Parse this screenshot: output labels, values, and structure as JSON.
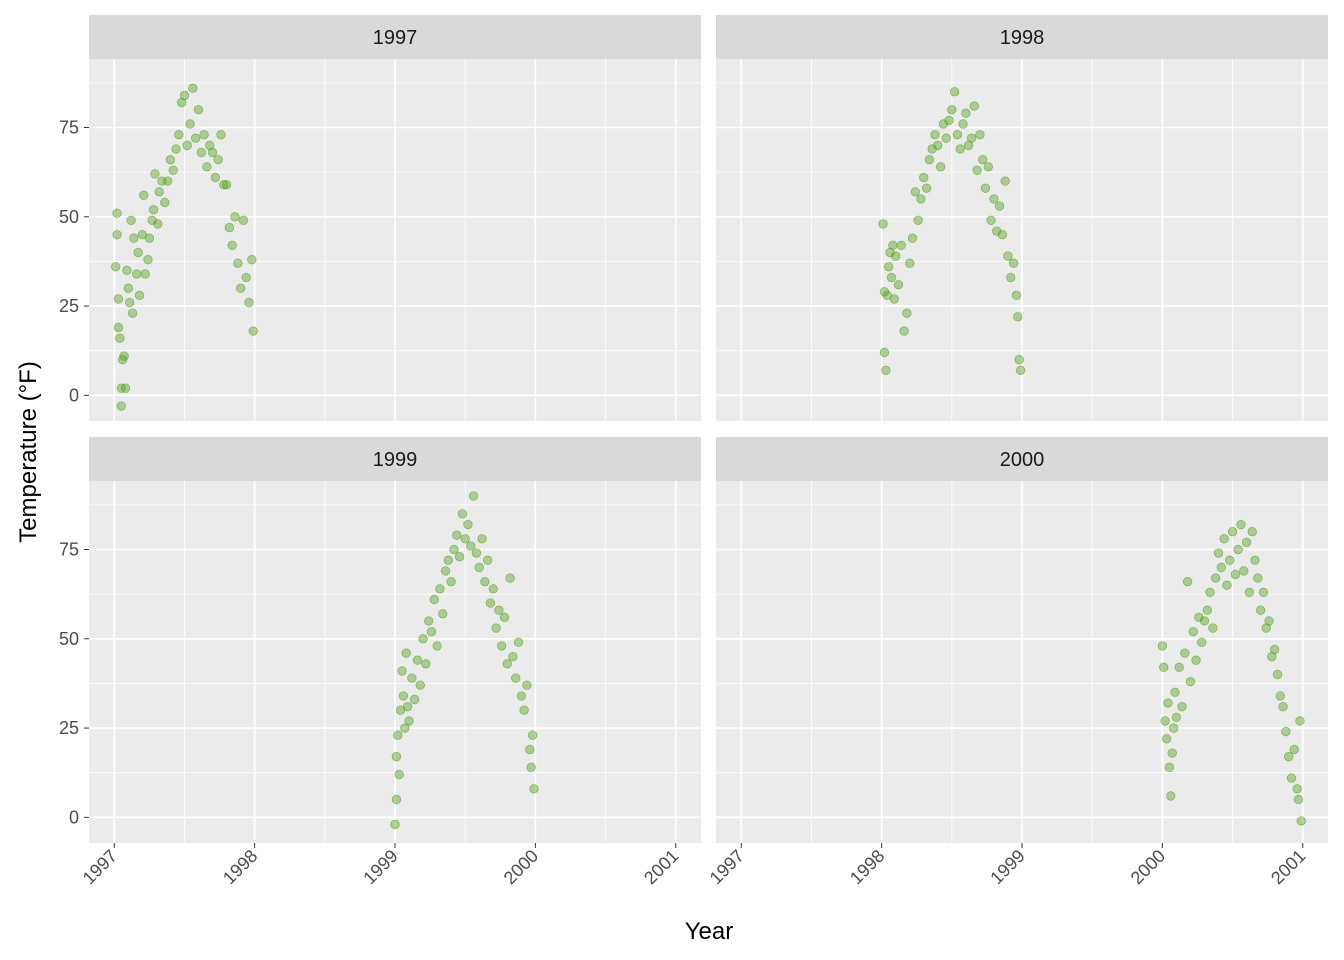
{
  "chart_data": {
    "type": "scatter",
    "xlabel": "Year",
    "ylabel": "Temperature (°F)",
    "xlim": [
      1997,
      2001
    ],
    "ylim": [
      -3,
      90
    ],
    "x_ticks": [
      "1997",
      "1998",
      "1999",
      "2000",
      "2001"
    ],
    "y_ticks": [
      "0",
      "25",
      "50",
      "75"
    ],
    "point_color": "#4a9a14",
    "background": "#ebebeb",
    "strip_background": "#d9d9d9",
    "grid": true,
    "facets": [
      {
        "label": "1997",
        "points": [
          [
            1997.01,
            36
          ],
          [
            1997.02,
            51
          ],
          [
            1997.02,
            45
          ],
          [
            1997.03,
            27
          ],
          [
            1997.03,
            19
          ],
          [
            1997.04,
            16
          ],
          [
            1997.05,
            2
          ],
          [
            1997.05,
            -3
          ],
          [
            1997.06,
            10
          ],
          [
            1997.07,
            11
          ],
          [
            1997.08,
            2
          ],
          [
            1997.09,
            35
          ],
          [
            1997.1,
            30
          ],
          [
            1997.11,
            26
          ],
          [
            1997.12,
            49
          ],
          [
            1997.13,
            23
          ],
          [
            1997.14,
            44
          ],
          [
            1997.16,
            34
          ],
          [
            1997.17,
            40
          ],
          [
            1997.18,
            28
          ],
          [
            1997.2,
            45
          ],
          [
            1997.21,
            56
          ],
          [
            1997.22,
            34
          ],
          [
            1997.24,
            38
          ],
          [
            1997.25,
            44
          ],
          [
            1997.27,
            49
          ],
          [
            1997.28,
            52
          ],
          [
            1997.29,
            62
          ],
          [
            1997.31,
            48
          ],
          [
            1997.32,
            57
          ],
          [
            1997.34,
            60
          ],
          [
            1997.36,
            54
          ],
          [
            1997.38,
            60
          ],
          [
            1997.4,
            66
          ],
          [
            1997.42,
            63
          ],
          [
            1997.44,
            69
          ],
          [
            1997.46,
            73
          ],
          [
            1997.48,
            82
          ],
          [
            1997.5,
            84
          ],
          [
            1997.52,
            70
          ],
          [
            1997.54,
            76
          ],
          [
            1997.56,
            86
          ],
          [
            1997.58,
            72
          ],
          [
            1997.6,
            80
          ],
          [
            1997.62,
            68
          ],
          [
            1997.64,
            73
          ],
          [
            1997.66,
            64
          ],
          [
            1997.68,
            70
          ],
          [
            1997.7,
            68
          ],
          [
            1997.72,
            61
          ],
          [
            1997.74,
            66
          ],
          [
            1997.76,
            73
          ],
          [
            1997.78,
            59
          ],
          [
            1997.8,
            59
          ],
          [
            1997.82,
            47
          ],
          [
            1997.84,
            42
          ],
          [
            1997.86,
            50
          ],
          [
            1997.88,
            37
          ],
          [
            1997.9,
            30
          ],
          [
            1997.92,
            49
          ],
          [
            1997.94,
            33
          ],
          [
            1997.96,
            26
          ],
          [
            1997.98,
            38
          ],
          [
            1997.99,
            18
          ]
        ]
      },
      {
        "label": "1998",
        "points": [
          [
            1998.01,
            48
          ],
          [
            1998.02,
            29
          ],
          [
            1998.02,
            12
          ],
          [
            1998.03,
            7
          ],
          [
            1998.04,
            28
          ],
          [
            1998.05,
            36
          ],
          [
            1998.06,
            40
          ],
          [
            1998.07,
            33
          ],
          [
            1998.08,
            42
          ],
          [
            1998.09,
            27
          ],
          [
            1998.1,
            39
          ],
          [
            1998.12,
            31
          ],
          [
            1998.14,
            42
          ],
          [
            1998.16,
            18
          ],
          [
            1998.18,
            23
          ],
          [
            1998.2,
            37
          ],
          [
            1998.22,
            44
          ],
          [
            1998.24,
            57
          ],
          [
            1998.26,
            49
          ],
          [
            1998.28,
            55
          ],
          [
            1998.3,
            61
          ],
          [
            1998.32,
            58
          ],
          [
            1998.34,
            66
          ],
          [
            1998.36,
            69
          ],
          [
            1998.38,
            73
          ],
          [
            1998.4,
            70
          ],
          [
            1998.42,
            64
          ],
          [
            1998.44,
            76
          ],
          [
            1998.46,
            72
          ],
          [
            1998.48,
            77
          ],
          [
            1998.5,
            80
          ],
          [
            1998.52,
            85
          ],
          [
            1998.54,
            73
          ],
          [
            1998.56,
            69
          ],
          [
            1998.58,
            76
          ],
          [
            1998.6,
            79
          ],
          [
            1998.62,
            70
          ],
          [
            1998.64,
            72
          ],
          [
            1998.66,
            81
          ],
          [
            1998.68,
            63
          ],
          [
            1998.7,
            73
          ],
          [
            1998.72,
            66
          ],
          [
            1998.74,
            58
          ],
          [
            1998.76,
            64
          ],
          [
            1998.78,
            49
          ],
          [
            1998.8,
            55
          ],
          [
            1998.82,
            46
          ],
          [
            1998.84,
            53
          ],
          [
            1998.86,
            45
          ],
          [
            1998.88,
            60
          ],
          [
            1998.9,
            39
          ],
          [
            1998.92,
            33
          ],
          [
            1998.94,
            37
          ],
          [
            1998.96,
            28
          ],
          [
            1998.97,
            22
          ],
          [
            1998.98,
            10
          ],
          [
            1998.99,
            7
          ]
        ]
      },
      {
        "label": "1999",
        "points": [
          [
            1999.0,
            -2
          ],
          [
            1999.01,
            5
          ],
          [
            1999.01,
            17
          ],
          [
            1999.02,
            23
          ],
          [
            1999.03,
            12
          ],
          [
            1999.04,
            30
          ],
          [
            1999.05,
            41
          ],
          [
            1999.06,
            34
          ],
          [
            1999.07,
            25
          ],
          [
            1999.08,
            46
          ],
          [
            1999.09,
            31
          ],
          [
            1999.1,
            27
          ],
          [
            1999.12,
            39
          ],
          [
            1999.14,
            33
          ],
          [
            1999.16,
            44
          ],
          [
            1999.18,
            37
          ],
          [
            1999.2,
            50
          ],
          [
            1999.22,
            43
          ],
          [
            1999.24,
            55
          ],
          [
            1999.26,
            52
          ],
          [
            1999.28,
            61
          ],
          [
            1999.3,
            48
          ],
          [
            1999.32,
            64
          ],
          [
            1999.34,
            57
          ],
          [
            1999.36,
            69
          ],
          [
            1999.38,
            72
          ],
          [
            1999.4,
            66
          ],
          [
            1999.42,
            75
          ],
          [
            1999.44,
            79
          ],
          [
            1999.46,
            73
          ],
          [
            1999.48,
            85
          ],
          [
            1999.5,
            78
          ],
          [
            1999.52,
            82
          ],
          [
            1999.54,
            76
          ],
          [
            1999.56,
            90
          ],
          [
            1999.58,
            74
          ],
          [
            1999.6,
            70
          ],
          [
            1999.62,
            78
          ],
          [
            1999.64,
            66
          ],
          [
            1999.66,
            72
          ],
          [
            1999.68,
            60
          ],
          [
            1999.7,
            64
          ],
          [
            1999.72,
            53
          ],
          [
            1999.74,
            58
          ],
          [
            1999.76,
            48
          ],
          [
            1999.78,
            56
          ],
          [
            1999.8,
            43
          ],
          [
            1999.82,
            67
          ],
          [
            1999.84,
            45
          ],
          [
            1999.86,
            39
          ],
          [
            1999.88,
            49
          ],
          [
            1999.9,
            34
          ],
          [
            1999.92,
            30
          ],
          [
            1999.94,
            37
          ],
          [
            1999.96,
            19
          ],
          [
            1999.97,
            14
          ],
          [
            1999.98,
            23
          ],
          [
            1999.99,
            8
          ]
        ]
      },
      {
        "label": "2000",
        "points": [
          [
            2000.0,
            48
          ],
          [
            2000.01,
            42
          ],
          [
            2000.02,
            27
          ],
          [
            2000.03,
            22
          ],
          [
            2000.04,
            32
          ],
          [
            2000.05,
            14
          ],
          [
            2000.06,
            6
          ],
          [
            2000.07,
            18
          ],
          [
            2000.08,
            25
          ],
          [
            2000.09,
            35
          ],
          [
            2000.1,
            28
          ],
          [
            2000.12,
            42
          ],
          [
            2000.14,
            31
          ],
          [
            2000.16,
            46
          ],
          [
            2000.18,
            66
          ],
          [
            2000.2,
            38
          ],
          [
            2000.22,
            52
          ],
          [
            2000.24,
            44
          ],
          [
            2000.26,
            56
          ],
          [
            2000.28,
            49
          ],
          [
            2000.3,
            55
          ],
          [
            2000.32,
            58
          ],
          [
            2000.34,
            63
          ],
          [
            2000.36,
            53
          ],
          [
            2000.38,
            67
          ],
          [
            2000.4,
            74
          ],
          [
            2000.42,
            70
          ],
          [
            2000.44,
            78
          ],
          [
            2000.46,
            65
          ],
          [
            2000.48,
            72
          ],
          [
            2000.5,
            80
          ],
          [
            2000.52,
            68
          ],
          [
            2000.54,
            75
          ],
          [
            2000.56,
            82
          ],
          [
            2000.58,
            69
          ],
          [
            2000.6,
            77
          ],
          [
            2000.62,
            63
          ],
          [
            2000.64,
            80
          ],
          [
            2000.66,
            72
          ],
          [
            2000.68,
            67
          ],
          [
            2000.7,
            58
          ],
          [
            2000.72,
            63
          ],
          [
            2000.74,
            53
          ],
          [
            2000.76,
            55
          ],
          [
            2000.78,
            45
          ],
          [
            2000.8,
            47
          ],
          [
            2000.82,
            40
          ],
          [
            2000.84,
            34
          ],
          [
            2000.86,
            31
          ],
          [
            2000.88,
            24
          ],
          [
            2000.9,
            17
          ],
          [
            2000.92,
            11
          ],
          [
            2000.94,
            19
          ],
          [
            2000.96,
            8
          ],
          [
            2000.97,
            5
          ],
          [
            2000.98,
            27
          ],
          [
            2000.99,
            -1
          ]
        ]
      }
    ]
  }
}
